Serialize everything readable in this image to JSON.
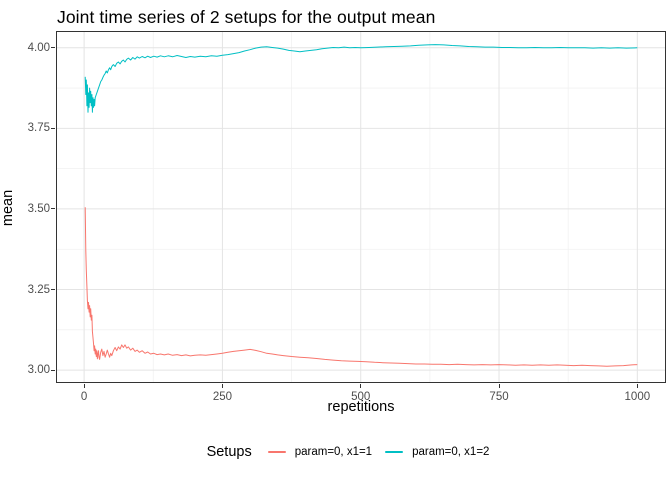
{
  "chart_data": {
    "type": "line",
    "title": "Joint time series of 2 setups for the output mean",
    "xlabel": "repetitions",
    "ylabel": "mean",
    "xlim": [
      -49,
      1050
    ],
    "ylim": [
      2.963,
      4.049
    ],
    "grid": true,
    "x_ticks": [
      {
        "value": 0,
        "label": "0"
      },
      {
        "value": 250,
        "label": "250"
      },
      {
        "value": 500,
        "label": "500"
      },
      {
        "value": 750,
        "label": "750"
      },
      {
        "value": 1000,
        "label": "1000"
      }
    ],
    "y_ticks": [
      {
        "value": 3.0,
        "label": "3.00"
      },
      {
        "value": 3.25,
        "label": "3.25"
      },
      {
        "value": 3.5,
        "label": "3.50"
      },
      {
        "value": 3.75,
        "label": "3.75"
      },
      {
        "value": 4.0,
        "label": "4.00"
      }
    ],
    "x_minor": [
      125,
      375,
      625,
      875
    ],
    "y_minor": [
      3.125,
      3.375,
      3.625,
      3.875
    ],
    "legend": {
      "title": "Setups",
      "position": "bottom"
    },
    "style": {
      "background": "#FFFFFF",
      "panel_border": "#333333",
      "grid_major": "#E4E4E4",
      "grid_minor": "#F1F1F1",
      "tick_color": "#333333",
      "tick_label_color": "#4D4D4D",
      "text_color": "#000000"
    },
    "series": [
      {
        "name": "param=0, x1=1",
        "color": "#F8766D",
        "points": [
          [
            2,
            3.505
          ],
          [
            3,
            3.37
          ],
          [
            4,
            3.31
          ],
          [
            5,
            3.26
          ],
          [
            6,
            3.215
          ],
          [
            7,
            3.19
          ],
          [
            8,
            3.21
          ],
          [
            9,
            3.18
          ],
          [
            10,
            3.2
          ],
          [
            11,
            3.165
          ],
          [
            12,
            3.19
          ],
          [
            13,
            3.155
          ],
          [
            14,
            3.17
          ],
          [
            15,
            3.12
          ],
          [
            16,
            3.1
          ],
          [
            17,
            3.083
          ],
          [
            18,
            3.06
          ],
          [
            19,
            3.075
          ],
          [
            20,
            3.05
          ],
          [
            21,
            3.065
          ],
          [
            22,
            3.042
          ],
          [
            23,
            3.06
          ],
          [
            24,
            3.035
          ],
          [
            25,
            3.05
          ],
          [
            26,
            3.06
          ],
          [
            27,
            3.04
          ],
          [
            28,
            3.033
          ],
          [
            30,
            3.055
          ],
          [
            32,
            3.065
          ],
          [
            34,
            3.045
          ],
          [
            36,
            3.058
          ],
          [
            38,
            3.04
          ],
          [
            40,
            3.05
          ],
          [
            42,
            3.062
          ],
          [
            44,
            3.05
          ],
          [
            46,
            3.04
          ],
          [
            48,
            3.052
          ],
          [
            50,
            3.045
          ],
          [
            53,
            3.06
          ],
          [
            56,
            3.07
          ],
          [
            59,
            3.06
          ],
          [
            62,
            3.072
          ],
          [
            65,
            3.065
          ],
          [
            68,
            3.078
          ],
          [
            71,
            3.07
          ],
          [
            74,
            3.078
          ],
          [
            77,
            3.068
          ],
          [
            80,
            3.072
          ],
          [
            84,
            3.062
          ],
          [
            88,
            3.068
          ],
          [
            92,
            3.058
          ],
          [
            96,
            3.062
          ],
          [
            100,
            3.055
          ],
          [
            105,
            3.06
          ],
          [
            110,
            3.052
          ],
          [
            115,
            3.056
          ],
          [
            120,
            3.05
          ],
          [
            126,
            3.052
          ],
          [
            132,
            3.048
          ],
          [
            138,
            3.05
          ],
          [
            145,
            3.047
          ],
          [
            152,
            3.05
          ],
          [
            160,
            3.046
          ],
          [
            168,
            3.048
          ],
          [
            176,
            3.045
          ],
          [
            184,
            3.047
          ],
          [
            192,
            3.044
          ],
          [
            200,
            3.046
          ],
          [
            210,
            3.047
          ],
          [
            220,
            3.046
          ],
          [
            230,
            3.048
          ],
          [
            240,
            3.05
          ],
          [
            250,
            3.052
          ],
          [
            260,
            3.055
          ],
          [
            270,
            3.058
          ],
          [
            280,
            3.06
          ],
          [
            290,
            3.062
          ],
          [
            300,
            3.064
          ],
          [
            310,
            3.061
          ],
          [
            320,
            3.057
          ],
          [
            330,
            3.052
          ],
          [
            340,
            3.05
          ],
          [
            350,
            3.047
          ],
          [
            360,
            3.045
          ],
          [
            375,
            3.042
          ],
          [
            390,
            3.04
          ],
          [
            405,
            3.038
          ],
          [
            420,
            3.036
          ],
          [
            435,
            3.033
          ],
          [
            450,
            3.031
          ],
          [
            465,
            3.029
          ],
          [
            480,
            3.028
          ],
          [
            495,
            3.027
          ],
          [
            510,
            3.026
          ],
          [
            525,
            3.024
          ],
          [
            540,
            3.023
          ],
          [
            555,
            3.022
          ],
          [
            570,
            3.021
          ],
          [
            585,
            3.02
          ],
          [
            600,
            3.019
          ],
          [
            615,
            3.019
          ],
          [
            630,
            3.018
          ],
          [
            645,
            3.018
          ],
          [
            660,
            3.017
          ],
          [
            675,
            3.018
          ],
          [
            690,
            3.017
          ],
          [
            705,
            3.016
          ],
          [
            720,
            3.017
          ],
          [
            735,
            3.016
          ],
          [
            750,
            3.017
          ],
          [
            765,
            3.016
          ],
          [
            780,
            3.015
          ],
          [
            795,
            3.016
          ],
          [
            810,
            3.015
          ],
          [
            825,
            3.016
          ],
          [
            840,
            3.015
          ],
          [
            855,
            3.016
          ],
          [
            870,
            3.015
          ],
          [
            885,
            3.014
          ],
          [
            900,
            3.015
          ],
          [
            915,
            3.014
          ],
          [
            930,
            3.013
          ],
          [
            945,
            3.012
          ],
          [
            960,
            3.013
          ],
          [
            975,
            3.014
          ],
          [
            990,
            3.016
          ],
          [
            1000,
            3.017
          ]
        ]
      },
      {
        "name": "param=0, x1=2",
        "color": "#00BFC4",
        "points": [
          [
            2,
            3.91
          ],
          [
            3,
            3.855
          ],
          [
            4,
            3.9
          ],
          [
            5,
            3.82
          ],
          [
            6,
            3.885
          ],
          [
            7,
            3.8
          ],
          [
            8,
            3.86
          ],
          [
            9,
            3.815
          ],
          [
            10,
            3.875
          ],
          [
            11,
            3.83
          ],
          [
            12,
            3.865
          ],
          [
            13,
            3.82
          ],
          [
            14,
            3.855
          ],
          [
            15,
            3.8
          ],
          [
            16,
            3.845
          ],
          [
            17,
            3.815
          ],
          [
            18,
            3.84
          ],
          [
            19,
            3.82
          ],
          [
            20,
            3.845
          ],
          [
            22,
            3.855
          ],
          [
            24,
            3.865
          ],
          [
            26,
            3.875
          ],
          [
            28,
            3.885
          ],
          [
            30,
            3.895
          ],
          [
            32,
            3.9
          ],
          [
            34,
            3.908
          ],
          [
            36,
            3.915
          ],
          [
            38,
            3.92
          ],
          [
            40,
            3.928
          ],
          [
            42,
            3.922
          ],
          [
            44,
            3.932
          ],
          [
            46,
            3.938
          ],
          [
            48,
            3.932
          ],
          [
            50,
            3.942
          ],
          [
            53,
            3.948
          ],
          [
            56,
            3.942
          ],
          [
            59,
            3.952
          ],
          [
            62,
            3.956
          ],
          [
            65,
            3.95
          ],
          [
            68,
            3.958
          ],
          [
            71,
            3.962
          ],
          [
            74,
            3.956
          ],
          [
            77,
            3.964
          ],
          [
            80,
            3.968
          ],
          [
            84,
            3.962
          ],
          [
            88,
            3.97
          ],
          [
            92,
            3.965
          ],
          [
            96,
            3.972
          ],
          [
            100,
            3.968
          ],
          [
            105,
            3.973
          ],
          [
            110,
            3.969
          ],
          [
            115,
            3.974
          ],
          [
            120,
            3.97
          ],
          [
            126,
            3.974
          ],
          [
            132,
            3.971
          ],
          [
            138,
            3.975
          ],
          [
            145,
            3.972
          ],
          [
            152,
            3.975
          ],
          [
            160,
            3.972
          ],
          [
            168,
            3.976
          ],
          [
            176,
            3.973
          ],
          [
            184,
            3.97
          ],
          [
            192,
            3.973
          ],
          [
            200,
            3.971
          ],
          [
            210,
            3.974
          ],
          [
            220,
            3.972
          ],
          [
            230,
            3.975
          ],
          [
            240,
            3.974
          ],
          [
            250,
            3.977
          ],
          [
            260,
            3.979
          ],
          [
            270,
            3.982
          ],
          [
            280,
            3.985
          ],
          [
            290,
            3.99
          ],
          [
            300,
            3.994
          ],
          [
            310,
            3.999
          ],
          [
            320,
            4.002
          ],
          [
            330,
            4.003
          ],
          [
            340,
            4.001
          ],
          [
            350,
            3.999
          ],
          [
            360,
            3.996
          ],
          [
            370,
            3.992
          ],
          [
            380,
            3.99
          ],
          [
            390,
            3.988
          ],
          [
            400,
            3.99
          ],
          [
            410,
            3.992
          ],
          [
            420,
            3.994
          ],
          [
            430,
            3.997
          ],
          [
            440,
            3.999
          ],
          [
            450,
            4.001
          ],
          [
            460,
            4.0
          ],
          [
            470,
            4.002
          ],
          [
            480,
            4.0
          ],
          [
            490,
            4.001
          ],
          [
            500,
            4.0
          ],
          [
            515,
            4.001
          ],
          [
            530,
            4.002
          ],
          [
            545,
            4.003
          ],
          [
            560,
            4.004
          ],
          [
            575,
            4.005
          ],
          [
            590,
            4.006
          ],
          [
            605,
            4.008
          ],
          [
            620,
            4.009
          ],
          [
            635,
            4.01
          ],
          [
            650,
            4.009
          ],
          [
            665,
            4.007
          ],
          [
            680,
            4.006
          ],
          [
            695,
            4.004
          ],
          [
            710,
            4.003
          ],
          [
            725,
            4.002
          ],
          [
            740,
            4.002
          ],
          [
            755,
            4.001
          ],
          [
            770,
            4.001
          ],
          [
            785,
            4.0
          ],
          [
            800,
            4.0
          ],
          [
            815,
            4.001
          ],
          [
            830,
            4.0
          ],
          [
            845,
            4.0
          ],
          [
            860,
            4.001
          ],
          [
            875,
            4.0
          ],
          [
            890,
            4.0
          ],
          [
            905,
            4.0
          ],
          [
            920,
            3.999
          ],
          [
            935,
            4.0
          ],
          [
            950,
            3.999
          ],
          [
            965,
            4.0
          ],
          [
            980,
            3.999
          ],
          [
            1000,
            4.0
          ]
        ]
      }
    ]
  }
}
